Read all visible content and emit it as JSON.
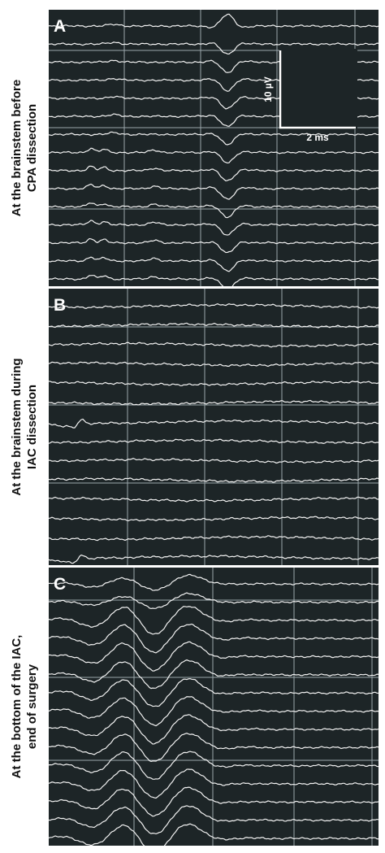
{
  "panels": [
    {
      "letter": "A",
      "label": [
        "At the brainstem before",
        "CPA dissection"
      ]
    },
    {
      "letter": "B",
      "label": [
        "At the brainstem during",
        "IAC dissection"
      ]
    },
    {
      "letter": "C",
      "label": [
        "At the bottom of the IAC,",
        "end of surgery"
      ]
    }
  ],
  "scale_bar": {
    "voltage": "10 µV",
    "time": "2 ms"
  }
}
